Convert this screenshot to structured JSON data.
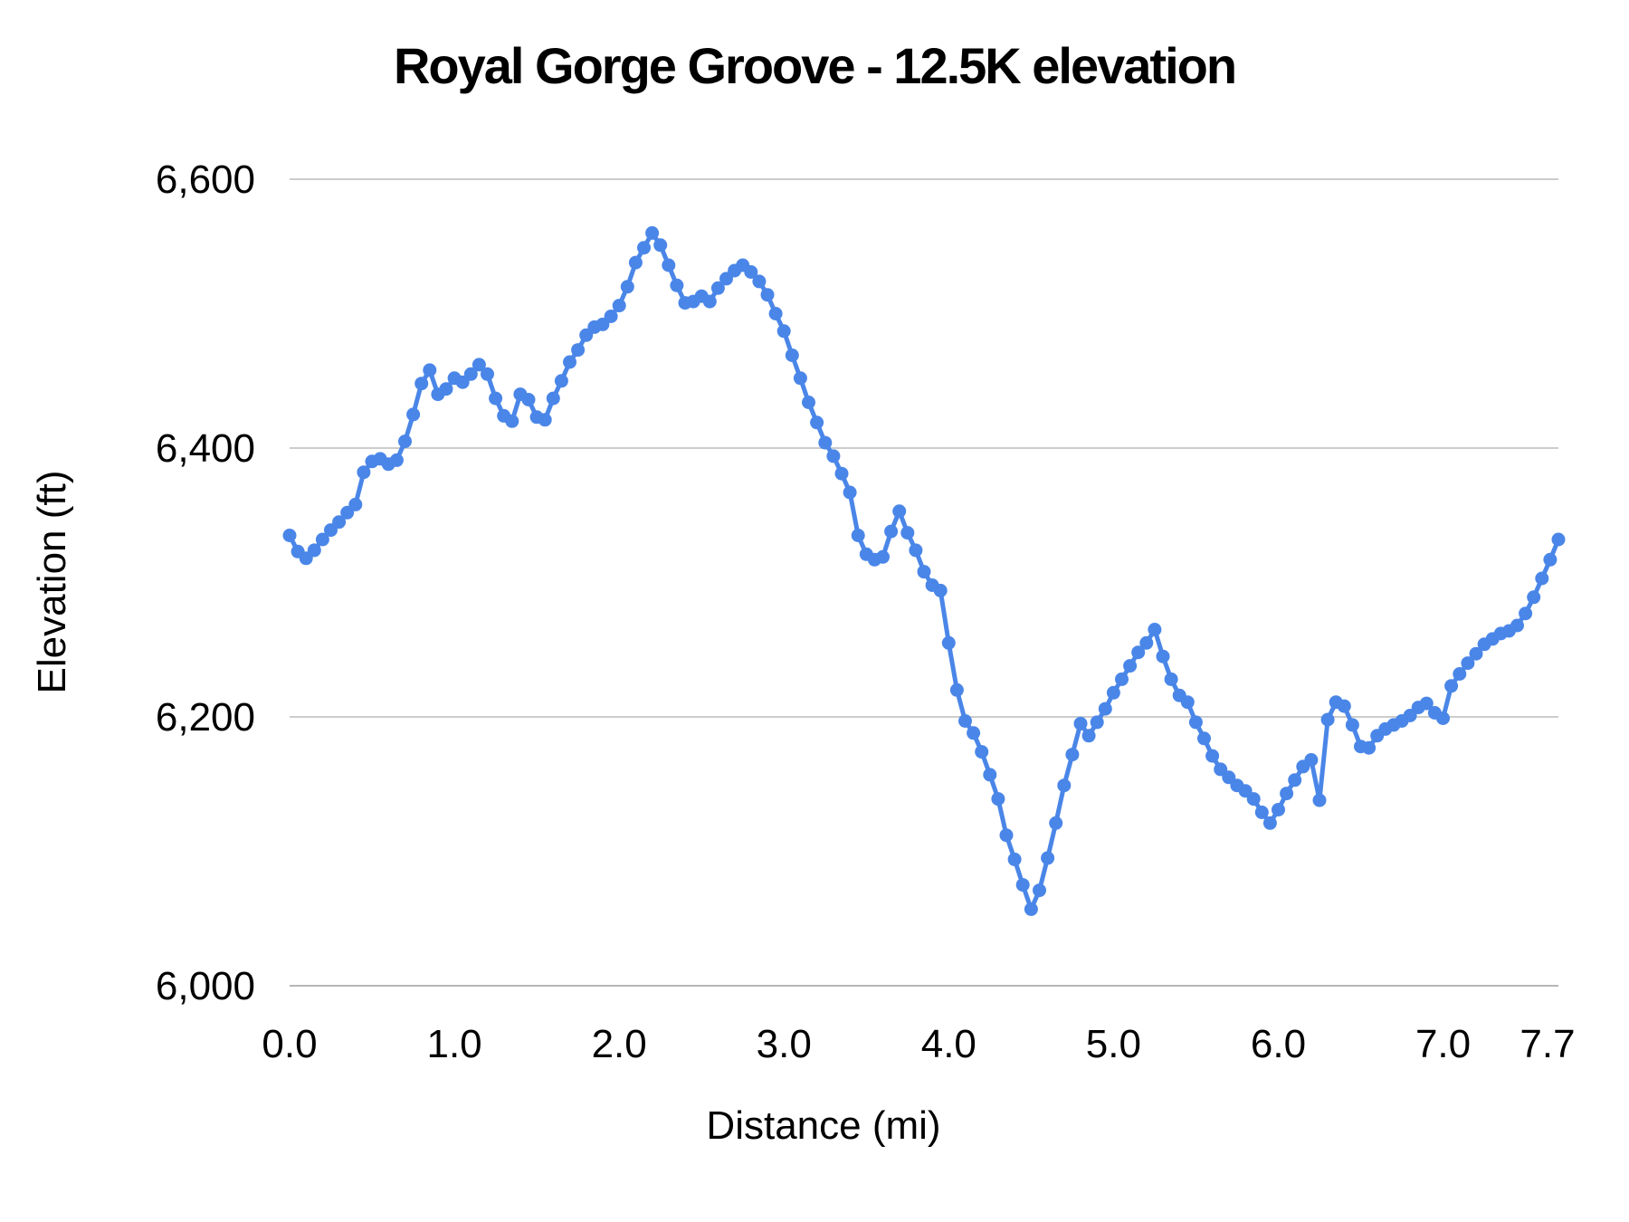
{
  "chart_data": {
    "type": "line",
    "title": "Royal Gorge Groove - 12.5K elevation",
    "xlabel": "Distance (mi)",
    "ylabel": "Elevation (ft)",
    "xlim": [
      0,
      7.7
    ],
    "ylim": [
      6000,
      6600
    ],
    "x_ticks": [
      {
        "value": 0.0,
        "label": "0.0"
      },
      {
        "value": 1.0,
        "label": "1.0"
      },
      {
        "value": 2.0,
        "label": "2.0"
      },
      {
        "value": 3.0,
        "label": "3.0"
      },
      {
        "value": 4.0,
        "label": "4.0"
      },
      {
        "value": 5.0,
        "label": "5.0"
      },
      {
        "value": 6.0,
        "label": "6.0"
      },
      {
        "value": 7.0,
        "label": "7.0"
      },
      {
        "value": 7.7,
        "label": "7.7"
      }
    ],
    "y_ticks": [
      {
        "value": 6000,
        "label": "6,000"
      },
      {
        "value": 6200,
        "label": "6,200"
      },
      {
        "value": 6400,
        "label": "6,400"
      },
      {
        "value": 6600,
        "label": "6,600"
      }
    ],
    "grid": "horizontal",
    "legend": "none",
    "series_color": "#4a86e8",
    "gridline_color": "#cccccc",
    "baseline_color": "#b7b7b7",
    "marker": "circle",
    "series": [
      {
        "name": "Elevation",
        "x": [
          0.0,
          0.05,
          0.1,
          0.15,
          0.2,
          0.25,
          0.3,
          0.35,
          0.4,
          0.45,
          0.5,
          0.55,
          0.6,
          0.65,
          0.7,
          0.75,
          0.8,
          0.85,
          0.9,
          0.95,
          1.0,
          1.05,
          1.1,
          1.15,
          1.2,
          1.25,
          1.3,
          1.35,
          1.4,
          1.45,
          1.5,
          1.55,
          1.6,
          1.65,
          1.7,
          1.75,
          1.8,
          1.85,
          1.9,
          1.95,
          2.0,
          2.05,
          2.1,
          2.15,
          2.2,
          2.25,
          2.3,
          2.35,
          2.4,
          2.45,
          2.5,
          2.55,
          2.6,
          2.65,
          2.7,
          2.75,
          2.8,
          2.85,
          2.9,
          2.95,
          3.0,
          3.05,
          3.1,
          3.15,
          3.2,
          3.25,
          3.3,
          3.35,
          3.4,
          3.45,
          3.5,
          3.55,
          3.6,
          3.65,
          3.7,
          3.75,
          3.8,
          3.85,
          3.9,
          3.95,
          4.0,
          4.05,
          4.1,
          4.15,
          4.2,
          4.25,
          4.3,
          4.35,
          4.4,
          4.45,
          4.5,
          4.55,
          4.6,
          4.65,
          4.7,
          4.75,
          4.8,
          4.85,
          4.9,
          4.95,
          5.0,
          5.05,
          5.1,
          5.15,
          5.2,
          5.25,
          5.3,
          5.35,
          5.4,
          5.45,
          5.5,
          5.55,
          5.6,
          5.65,
          5.7,
          5.75,
          5.8,
          5.85,
          5.9,
          5.95,
          6.0,
          6.05,
          6.1,
          6.15,
          6.2,
          6.25,
          6.3,
          6.35,
          6.4,
          6.45,
          6.5,
          6.55,
          6.6,
          6.65,
          6.7,
          6.75,
          6.8,
          6.85,
          6.9,
          6.95,
          7.0,
          7.05,
          7.1,
          7.15,
          7.2,
          7.25,
          7.3,
          7.35,
          7.4,
          7.45,
          7.5,
          7.55,
          7.6,
          7.65,
          7.7
        ],
        "y": [
          6335,
          6323,
          6318,
          6324,
          6332,
          6339,
          6345,
          6352,
          6358,
          6382,
          6390,
          6392,
          6388,
          6391,
          6405,
          6425,
          6448,
          6458,
          6440,
          6444,
          6452,
          6449,
          6455,
          6462,
          6455,
          6437,
          6424,
          6420,
          6440,
          6436,
          6423,
          6421,
          6437,
          6450,
          6464,
          6473,
          6484,
          6490,
          6492,
          6498,
          6506,
          6520,
          6538,
          6549,
          6560,
          6551,
          6536,
          6521,
          6508,
          6509,
          6513,
          6509,
          6519,
          6526,
          6532,
          6536,
          6531,
          6524,
          6514,
          6500,
          6487,
          6469,
          6452,
          6434,
          6419,
          6404,
          6394,
          6381,
          6367,
          6335,
          6321,
          6317,
          6319,
          6338,
          6353,
          6337,
          6324,
          6308,
          6298,
          6294,
          6255,
          6220,
          6197,
          6188,
          6174,
          6157,
          6139,
          6112,
          6094,
          6075,
          6057,
          6071,
          6095,
          6121,
          6149,
          6172,
          6195,
          6186,
          6196,
          6206,
          6218,
          6228,
          6238,
          6248,
          6255,
          6265,
          6245,
          6228,
          6216,
          6211,
          6196,
          6184,
          6171,
          6161,
          6155,
          6149,
          6145,
          6139,
          6129,
          6121,
          6131,
          6143,
          6153,
          6163,
          6168,
          6138,
          6198,
          6211,
          6208,
          6194,
          6178,
          6177,
          6186,
          6191,
          6194,
          6197,
          6201,
          6207,
          6210,
          6203,
          6199,
          6223,
          6232,
          6240,
          6247,
          6254,
          6258,
          6262,
          6264,
          6268,
          6277,
          6289,
          6303,
          6317,
          6332
        ]
      }
    ]
  }
}
